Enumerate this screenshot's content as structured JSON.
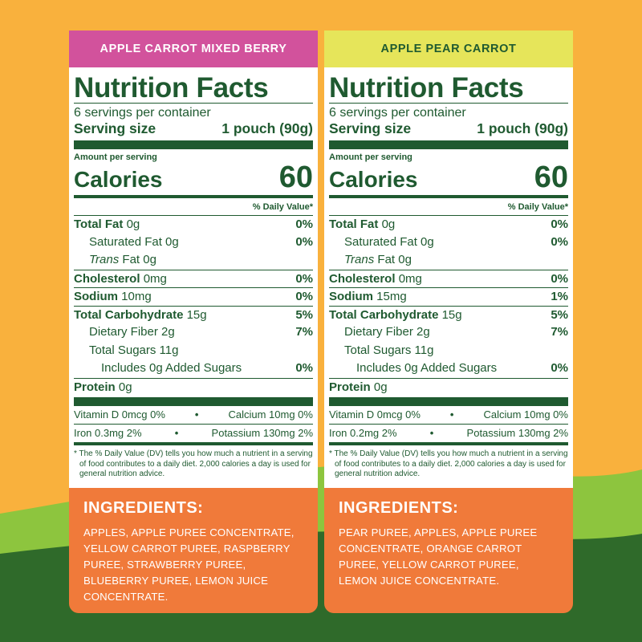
{
  "colors": {
    "background_orange": "#f9b13d",
    "hill_light": "#8dc53e",
    "hill_dark": "#2f6a2a",
    "label_green": "#1f5a30",
    "ingredients_orange": "#f07a3a",
    "left_header": "#d2529c",
    "right_header": "#e6e55a"
  },
  "panels": [
    {
      "header": "APPLE CARROT MIXED BERRY",
      "title": "Nutrition Facts",
      "servings": "6 servings per container",
      "serving_size_label": "Serving size",
      "serving_size_value": "1 pouch (90g)",
      "amount_per_serving": "Amount per serving",
      "calories_label": "Calories",
      "calories_value": "60",
      "daily_value_header": "% Daily Value*",
      "nutrients": {
        "total_fat": {
          "label": "Total Fat",
          "amount": "0g",
          "dv": "0%"
        },
        "saturated_fat": {
          "label": "Saturated Fat 0g",
          "dv": "0%"
        },
        "trans_fat": {
          "italic": "Trans",
          "rest": "Fat 0g"
        },
        "cholesterol": {
          "label": "Cholesterol",
          "amount": "0mg",
          "dv": "0%"
        },
        "sodium": {
          "label": "Sodium",
          "amount": "10mg",
          "dv": "0%"
        },
        "total_carb": {
          "label": "Total Carbohydrate",
          "amount": "15g",
          "dv": "5%"
        },
        "fiber": {
          "label": "Dietary Fiber 2g",
          "dv": "7%"
        },
        "total_sugars": {
          "label": "Total Sugars 11g"
        },
        "added_sugars": {
          "label": "Includes 0g Added Sugars",
          "dv": "0%"
        },
        "protein": {
          "label": "Protein",
          "amount": "0g"
        }
      },
      "vitamins": {
        "vit_d": "Vitamin D 0mcg 0%",
        "calcium": "Calcium 10mg 0%",
        "iron": "Iron 0.3mg 2%",
        "potassium": "Potassium 130mg 2%"
      },
      "footnote": "* The % Daily Value (DV) tells you how much a nutrient in a serving of food contributes to a daily diet. 2,000 calories a day is used for general nutrition advice.",
      "ingredients_title": "INGREDIENTS:",
      "ingredients_text": "APPLES, APPLE PUREE CONCENTRATE, YELLOW CARROT PUREE, RASPBERRY PUREE, STRAWBERRY PUREE, BLUEBERRY PUREE, LEMON JUICE CONCENTRATE."
    },
    {
      "header": "APPLE PEAR CARROT",
      "title": "Nutrition Facts",
      "servings": "6 servings per container",
      "serving_size_label": "Serving size",
      "serving_size_value": "1 pouch (90g)",
      "amount_per_serving": "Amount per serving",
      "calories_label": "Calories",
      "calories_value": "60",
      "daily_value_header": "% Daily Value*",
      "nutrients": {
        "total_fat": {
          "label": "Total Fat",
          "amount": "0g",
          "dv": "0%"
        },
        "saturated_fat": {
          "label": "Saturated Fat 0g",
          "dv": "0%"
        },
        "trans_fat": {
          "italic": "Trans",
          "rest": "Fat 0g"
        },
        "cholesterol": {
          "label": "Cholesterol",
          "amount": "0mg",
          "dv": "0%"
        },
        "sodium": {
          "label": "Sodium",
          "amount": "15mg",
          "dv": "1%"
        },
        "total_carb": {
          "label": "Total Carbohydrate",
          "amount": "15g",
          "dv": "5%"
        },
        "fiber": {
          "label": "Dietary Fiber 2g",
          "dv": "7%"
        },
        "total_sugars": {
          "label": "Total Sugars 11g"
        },
        "added_sugars": {
          "label": "Includes 0g Added Sugars",
          "dv": "0%"
        },
        "protein": {
          "label": "Protein",
          "amount": "0g"
        }
      },
      "vitamins": {
        "vit_d": "Vitamin D 0mcg 0%",
        "calcium": "Calcium 10mg 0%",
        "iron": "Iron 0.2mg 2%",
        "potassium": "Potassium 130mg 2%"
      },
      "footnote": "* The % Daily Value (DV) tells you how much a nutrient in a serving of food contributes to a daily diet. 2,000 calories a day is used for general nutrition advice.",
      "ingredients_title": "INGREDIENTS:",
      "ingredients_text": "PEAR PUREE, APPLES, APPLE PUREE CONCENTRATE, ORANGE CARROT PUREE, YELLOW CARROT PUREE, LEMON JUICE CONCENTRATE."
    }
  ]
}
